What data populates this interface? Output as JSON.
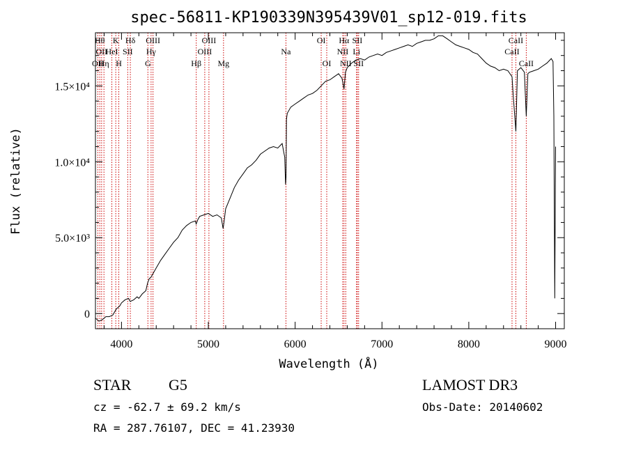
{
  "chart_data": {
    "type": "line",
    "title": "spec-56811-KP190339N395439V01_sp12-019.fits",
    "xlabel": "Wavelength (Å)",
    "ylabel": "Flux (relative)",
    "xlim": [
      3700,
      9100
    ],
    "ylim": [
      -1000,
      18500
    ],
    "x_ticks": [
      {
        "value": 4000,
        "label": "4000"
      },
      {
        "value": 5000,
        "label": "5000"
      },
      {
        "value": 6000,
        "label": "6000"
      },
      {
        "value": 7000,
        "label": "7000"
      },
      {
        "value": 8000,
        "label": "8000"
      },
      {
        "value": 9000,
        "label": "9000"
      }
    ],
    "y_ticks": [
      {
        "value": 0,
        "label": "0"
      },
      {
        "value": 5000,
        "label": "5.0×10³"
      },
      {
        "value": 10000,
        "label": "1.0×10⁴"
      },
      {
        "value": 15000,
        "label": "1.5×10⁴"
      }
    ],
    "series": [
      {
        "name": "spectrum",
        "color": "#000000",
        "x": [
          3700,
          3740,
          3780,
          3820,
          3860,
          3900,
          3940,
          3980,
          4000,
          4040,
          4080,
          4100,
          4140,
          4180,
          4200,
          4240,
          4280,
          4300,
          4320,
          4340,
          4360,
          4400,
          4450,
          4500,
          4550,
          4600,
          4650,
          4700,
          4750,
          4800,
          4850,
          4860,
          4880,
          4900,
          4950,
          5000,
          5050,
          5100,
          5150,
          5170,
          5180,
          5200,
          5250,
          5300,
          5350,
          5400,
          5450,
          5500,
          5550,
          5600,
          5650,
          5700,
          5750,
          5800,
          5850,
          5880,
          5890,
          5895,
          5900,
          5910,
          5950,
          6000,
          6050,
          6100,
          6150,
          6200,
          6250,
          6300,
          6350,
          6400,
          6450,
          6500,
          6540,
          6563,
          6580,
          6600,
          6650,
          6700,
          6750,
          6800,
          6850,
          6900,
          6950,
          7000,
          7050,
          7100,
          7150,
          7200,
          7250,
          7300,
          7350,
          7400,
          7450,
          7500,
          7550,
          7600,
          7650,
          7700,
          7750,
          7800,
          7850,
          7900,
          7950,
          8000,
          8050,
          8100,
          8150,
          8200,
          8250,
          8300,
          8350,
          8400,
          8450,
          8498,
          8510,
          8542,
          8560,
          8600,
          8640,
          8662,
          8680,
          8700,
          8750,
          8800,
          8850,
          8900,
          8950,
          8970,
          8980,
          8990,
          9000
        ],
        "y": [
          -300,
          -500,
          -400,
          -200,
          -200,
          -100,
          300,
          500,
          700,
          900,
          1000,
          800,
          900,
          1100,
          1000,
          1300,
          1500,
          2000,
          2300,
          2400,
          2600,
          3000,
          3500,
          3900,
          4300,
          4700,
          5000,
          5500,
          5800,
          6000,
          6100,
          5900,
          6200,
          6400,
          6500,
          6600,
          6400,
          6500,
          6300,
          5600,
          6000,
          6900,
          7600,
          8300,
          8800,
          9200,
          9600,
          9800,
          10100,
          10500,
          10700,
          10900,
          11000,
          10900,
          11200,
          10300,
          8500,
          9000,
          12800,
          13200,
          13600,
          13800,
          14000,
          14200,
          14400,
          14500,
          14700,
          15000,
          15300,
          15400,
          15600,
          15800,
          15500,
          14800,
          15900,
          16200,
          16500,
          16700,
          16800,
          16700,
          16900,
          17000,
          17100,
          17000,
          17200,
          17300,
          17400,
          17500,
          17600,
          17700,
          17600,
          17800,
          17900,
          18000,
          18000,
          18100,
          18300,
          18300,
          18100,
          17900,
          17700,
          17600,
          17500,
          17400,
          17200,
          17100,
          16800,
          16500,
          16300,
          16200,
          16000,
          16100,
          16000,
          15600,
          14500,
          12000,
          16000,
          16200,
          15900,
          13000,
          15800,
          15900,
          16000,
          16100,
          16300,
          16500,
          16800,
          16600,
          13000,
          1000,
          11000
        ]
      }
    ],
    "lines": [
      {
        "wavelength": 3727,
        "labels": [
          "OII"
        ],
        "row": 3
      },
      {
        "wavelength": 3750,
        "labels": [
          "Hθ"
        ],
        "row": 1
      },
      {
        "wavelength": 3771,
        "labels": [
          "OII"
        ],
        "row": 2
      },
      {
        "wavelength": 3798,
        "labels": [
          "Hη"
        ],
        "row": 3
      },
      {
        "wavelength": 3889,
        "labels": [
          "HeI"
        ],
        "row": 2
      },
      {
        "wavelength": 3934,
        "labels": [
          "K"
        ],
        "row": 1
      },
      {
        "wavelength": 3969,
        "labels": [
          "H"
        ],
        "row": 3
      },
      {
        "wavelength": 4072,
        "labels": [
          "SII"
        ],
        "row": 2
      },
      {
        "wavelength": 4102,
        "labels": [
          "Hδ"
        ],
        "row": 1
      },
      {
        "wavelength": 4304,
        "labels": [
          "G"
        ],
        "row": 3
      },
      {
        "wavelength": 4341,
        "labels": [
          "Hγ"
        ],
        "row": 2
      },
      {
        "wavelength": 4363,
        "labels": [
          "OIII"
        ],
        "row": 1
      },
      {
        "wavelength": 4861,
        "labels": [
          "Hβ"
        ],
        "row": 3
      },
      {
        "wavelength": 4959,
        "labels": [
          "OIII"
        ],
        "row": 2
      },
      {
        "wavelength": 5007,
        "labels": [
          "OIII"
        ],
        "row": 1
      },
      {
        "wavelength": 5175,
        "labels": [
          "Mg"
        ],
        "row": 3
      },
      {
        "wavelength": 5894,
        "labels": [
          "Na"
        ],
        "row": 2
      },
      {
        "wavelength": 6300,
        "labels": [
          "OI"
        ],
        "row": 1
      },
      {
        "wavelength": 6364,
        "labels": [
          "OI"
        ],
        "row": 3
      },
      {
        "wavelength": 6548,
        "labels": [
          "NII"
        ],
        "row": 2
      },
      {
        "wavelength": 6563,
        "labels": [
          "Hα"
        ],
        "row": 1
      },
      {
        "wavelength": 6583,
        "labels": [
          "NII"
        ],
        "row": 3
      },
      {
        "wavelength": 6707,
        "labels": [
          "Li"
        ],
        "row": 2
      },
      {
        "wavelength": 6716,
        "labels": [
          "SII"
        ],
        "row": 1
      },
      {
        "wavelength": 6731,
        "labels": [
          "SII"
        ],
        "row": 3
      },
      {
        "wavelength": 8498,
        "labels": [
          "CaII"
        ],
        "row": 2
      },
      {
        "wavelength": 8542,
        "labels": [
          "CaII"
        ],
        "row": 1
      },
      {
        "wavelength": 8662,
        "labels": [
          "CaII"
        ],
        "row": 3
      }
    ]
  },
  "info": {
    "class": "STAR",
    "subclass": "G5",
    "survey": "LAMOST DR3",
    "cz": "cz = -62.7 ± 69.2 km/s",
    "obs_date": "Obs-Date: 20140602",
    "coords": "RA = 287.76107, DEC =  41.23930"
  },
  "colors": {
    "spectrum": "#000000",
    "line_marker": "#cc0000"
  }
}
